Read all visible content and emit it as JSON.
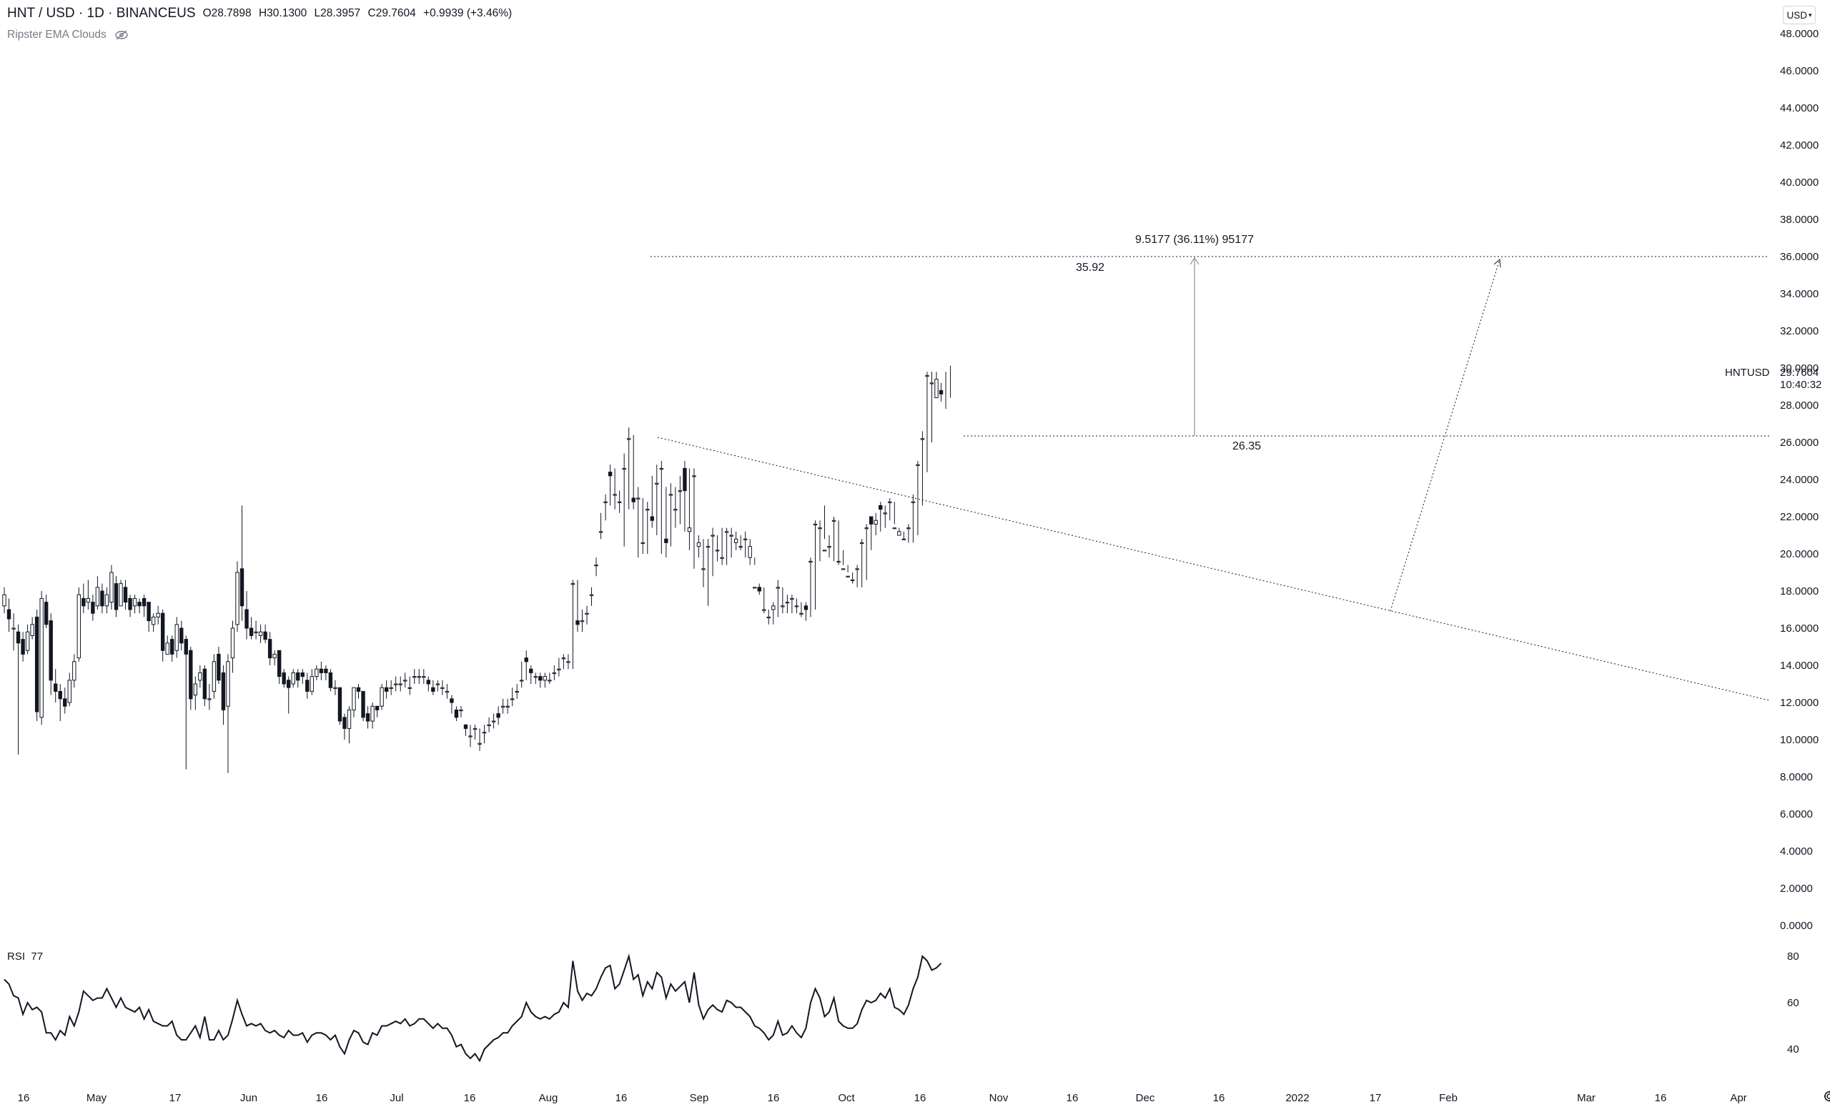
{
  "header": {
    "symbol": "HNT / USD · 1D · BINANCEUS",
    "open": "O28.7898",
    "high": "H30.1300",
    "low": "L28.3957",
    "close": "C29.7604",
    "change": "+0.9939 (+3.46%)"
  },
  "indicator": {
    "name": "Ripster EMA Clouds",
    "icon": "eye-off-icon"
  },
  "currency_button": "USD",
  "ticker_label": "HNTUSD",
  "last_price": "29.7604",
  "countdown": "10:40:32",
  "rsi": {
    "label": "RSI",
    "value": "77",
    "ticks": [
      "80",
      "60",
      "40"
    ]
  },
  "colors": {
    "up": "#ffffff",
    "down": "#131722",
    "stroke": "#131722",
    "line": "#131722",
    "price_tag_bg": "#ffffff"
  },
  "annotations": {
    "measure": "9.5177 (36.11%) 95177",
    "target_price": "35.92",
    "support_price": "26.35"
  },
  "chart_data": [
    {
      "type": "candlestick",
      "title": "HNT / USD · 1D · BINANCEUS",
      "y_ticks": [
        "48.0000",
        "46.0000",
        "44.0000",
        "42.0000",
        "40.0000",
        "38.0000",
        "36.0000",
        "34.0000",
        "32.0000",
        "30.0000",
        "28.0000",
        "26.0000",
        "24.0000",
        "22.0000",
        "20.0000",
        "18.0000",
        "16.0000",
        "14.0000",
        "12.0000",
        "10.0000",
        "8.0000",
        "6.0000",
        "4.0000",
        "2.0000",
        "0.0000"
      ],
      "ylim": [
        0,
        48
      ],
      "x_labels": [
        "16",
        "May",
        "17",
        "Jun",
        "16",
        "Jul",
        "16",
        "Aug",
        "16",
        "Sep",
        "16",
        "Oct",
        "16",
        "Nov",
        "16",
        "Dec",
        "16",
        "2022",
        "17",
        "Feb",
        "Mar",
        "16",
        "Apr"
      ],
      "series": [
        {
          "close": [
            17.8,
            16.5,
            16,
            15.2,
            14.6,
            15.8,
            16.2,
            11.5,
            17.6,
            16.2,
            13.2,
            12.6,
            12.2,
            11.8,
            13.2,
            14.2,
            17.8,
            17.2,
            17.6,
            16.8,
            18.2,
            17.2,
            17.8,
            19,
            17,
            18.4,
            17.4,
            17,
            17.6,
            17.2,
            17.2,
            16.4,
            16.6,
            16.8,
            14.8,
            15.2,
            14.6,
            16.2,
            15.2,
            14.6,
            12.2,
            13,
            13.6,
            12.2,
            12.2,
            14.2,
            13.2,
            11.6,
            14.2,
            16,
            19,
            17.2,
            16,
            15.6,
            15.8,
            15.8,
            15.4,
            14.4,
            14.6,
            13.4,
            13,
            12.8,
            13.6,
            13.2,
            13.4,
            12.6,
            13.4,
            13.8,
            13.6,
            13.6,
            12.8,
            12.8,
            11,
            10.6,
            11.6,
            12.8,
            12.6,
            11.2,
            11,
            11.8,
            11.6,
            12.8,
            12.6,
            12.8,
            13,
            13,
            13.2,
            12.8,
            13.4,
            13.4,
            13.4,
            13,
            12.6,
            13,
            12.8,
            12.6,
            12,
            11.2,
            11.6,
            10.6,
            10.2,
            10.6,
            9.8,
            10.4,
            10.8,
            11,
            11.2,
            11.8,
            11.8,
            12.2,
            12.6,
            13.2,
            14.2,
            13.6,
            13.4,
            13.2,
            13.4,
            13.2,
            13.6,
            13.8,
            14.4,
            14.2,
            18.4,
            16.2,
            16.4,
            16.8,
            17.8,
            19.4,
            21.2,
            22.8,
            24.2,
            23.2,
            22.8,
            24.6,
            26.2,
            22.8,
            23,
            20.6,
            22.4,
            21.8,
            23.8,
            24.6,
            20.6,
            23.2,
            22.4,
            23.4,
            23.4,
            21.4,
            24.2,
            20.6,
            19.2,
            20.4,
            21,
            20.2,
            19.8,
            21.2,
            21,
            20.8,
            20.4,
            20.8,
            20.4,
            18.2,
            18,
            17,
            16.6,
            17.2,
            18.2,
            17.2,
            17.4,
            17.6,
            17.2,
            16.8,
            17,
            19.6,
            21.6,
            21.4,
            20.2,
            20.4,
            21.8,
            19.6,
            19.2,
            18.8,
            18.6,
            19.2,
            20.6,
            21.4,
            21.6,
            21.8,
            22.4,
            22.2,
            22.8,
            21.4,
            21.2,
            20.8,
            21.4,
            22.8,
            24.8,
            26.2,
            29.6,
            29.2,
            29.4,
            28.6,
            28.8,
            29.7604
          ]
        },
        {
          "open": [
            17.2,
            17,
            16,
            15.8,
            15.4,
            14.8,
            15.6,
            16.6,
            11.2,
            17.4,
            16.4,
            13,
            12.6,
            12.2,
            12,
            13.2,
            14.4,
            17.6,
            17.4,
            17.4,
            17.2,
            18,
            17.2,
            17.4,
            18.4,
            17.2,
            18.2,
            17.6,
            17.2,
            17.4,
            17.6,
            17.4,
            16.2,
            16.6,
            16.8,
            14.6,
            15.4,
            14.8,
            16,
            15.4,
            14.8,
            12.4,
            13.2,
            13.8,
            12.2,
            12.6,
            14.6,
            13.6,
            11.8,
            14.4,
            16.2,
            19.2,
            17,
            16,
            15.8,
            15.6,
            15.8,
            15.4,
            14.4,
            14.8,
            13.6,
            13.2,
            13,
            13.6,
            13.6,
            13.2,
            12.6,
            13.4,
            13.8,
            13.8,
            13.6,
            12.8,
            12.8,
            11.2,
            10.6,
            11.6,
            12.8,
            12.6,
            11.4,
            11,
            11.8,
            11.8,
            12.8,
            12.8,
            13,
            13,
            13.2,
            12.8,
            13.4,
            13.4,
            13.4,
            13.2,
            12.8,
            13,
            12.8,
            12.6,
            12.2,
            11.6,
            11.6,
            10.8,
            10.2,
            10.6,
            9.8,
            10.4,
            10.8,
            11,
            11.4,
            11.8,
            11.8,
            12.2,
            12.6,
            13.2,
            14.4,
            13.8,
            13.4,
            13.4,
            13.2,
            13.2,
            13.6,
            13.8,
            14.4,
            14.2,
            18.4,
            16.4,
            16.4,
            16.8,
            17.8,
            19.4,
            21.2,
            22.8,
            24.4,
            23.2,
            22.8,
            24.6,
            26.2,
            23,
            23,
            20.6,
            22.4,
            22,
            23.8,
            24.6,
            20.8,
            23.2,
            22.4,
            23.4,
            24.6,
            21.2,
            24.2,
            20.4,
            19.2,
            20.4,
            21,
            20.2,
            19.8,
            21.2,
            21,
            20.6,
            20.4,
            20.8,
            19.8,
            18.2,
            18.2,
            17,
            16.6,
            17,
            18.2,
            17.2,
            17.4,
            17.6,
            17.2,
            16.8,
            17.2,
            19.6,
            21.6,
            21.4,
            20.2,
            20.4,
            21.8,
            19.6,
            19.2,
            18.8,
            18.6,
            19.2,
            20.6,
            21.4,
            22,
            21.6,
            22.6,
            22.2,
            22.8,
            21.4,
            21,
            20.8,
            21.4,
            22.8,
            24.8,
            26.2,
            29.6,
            29.2,
            28.4,
            28.7898
          ]
        },
        {
          "high": [
            18.2,
            17.6,
            16.8,
            16.2,
            15.8,
            16.2,
            16.6,
            17,
            18,
            17.8,
            16.8,
            13.8,
            13,
            12.8,
            13.6,
            14.6,
            18.2,
            18.4,
            18.6,
            17.8,
            18.8,
            18.4,
            18.2,
            19.4,
            18.8,
            18.6,
            18.6,
            17.8,
            17.8,
            17.6,
            17.8,
            17.4,
            16.8,
            17.2,
            17,
            15.6,
            15.6,
            16.6,
            16.4,
            15.6,
            15,
            13.4,
            14,
            14,
            13,
            14.6,
            15,
            14,
            14.6,
            16.4,
            19.6,
            22.6,
            18,
            16.6,
            16.4,
            16.2,
            16.2,
            15.8,
            14.8,
            14.8,
            13.8,
            13.4,
            13.8,
            13.8,
            13.8,
            13.6,
            13.8,
            14,
            14.2,
            14,
            13.8,
            13.2,
            12.8,
            11.4,
            11.8,
            12.8,
            13,
            12.6,
            11.8,
            12,
            11.8,
            13,
            13.2,
            13.2,
            13.4,
            13.4,
            13.6,
            13.4,
            13.8,
            13.8,
            13.8,
            13.4,
            13.2,
            13.2,
            13.2,
            13,
            12.4,
            11.8,
            11.8,
            10.8,
            10.8,
            10.8,
            10.6,
            10.8,
            11.2,
            11.4,
            11.8,
            12.2,
            12.2,
            12.8,
            13,
            14.2,
            14.8,
            14,
            13.6,
            13.6,
            13.6,
            13.6,
            14,
            14.4,
            14.6,
            14.6,
            18.6,
            18.6,
            17,
            17.2,
            18.2,
            19.8,
            22.2,
            23.2,
            24.8,
            24.6,
            23.4,
            25.4,
            26.8,
            26.4,
            23.6,
            23,
            22.8,
            24.2,
            24.8,
            25,
            23.6,
            23.8,
            23.6,
            24.2,
            25,
            24.6,
            24.6,
            21,
            20.8,
            20.8,
            21.4,
            21,
            21.4,
            21.4,
            21.4,
            21.2,
            21,
            21.2,
            20.8,
            19.8,
            18.4,
            18.2,
            17,
            17.4,
            18.6,
            18.2,
            17.8,
            17.8,
            17.6,
            17.4,
            17.4,
            19.8,
            21.8,
            21.8,
            22.6,
            21,
            22,
            21.8,
            20.2,
            19.4,
            19,
            19.4,
            20.8,
            21.6,
            22,
            22.2,
            22.8,
            22.6,
            23,
            22.8,
            21.4,
            21.2,
            21.6,
            23.2,
            25,
            26.6,
            29.8,
            29.8,
            29.8,
            29.2,
            29.8,
            30.13
          ]
        },
        {
          "low": [
            16.8,
            15.8,
            14.8,
            9.2,
            14.2,
            14.6,
            15.4,
            11,
            10.8,
            16,
            12.4,
            12,
            11,
            11.4,
            11.8,
            12.8,
            14.2,
            16.8,
            17,
            16.4,
            17,
            16.8,
            16.8,
            17,
            16.6,
            17.2,
            17,
            16.6,
            16.8,
            16.8,
            16.6,
            15.8,
            15.8,
            16.2,
            14.2,
            14.6,
            14.2,
            14.4,
            14.8,
            8.4,
            11.6,
            11.6,
            12.8,
            11.8,
            11.6,
            12.2,
            13,
            10.8,
            8.2,
            13.6,
            15.8,
            16.4,
            15.4,
            15.4,
            15.4,
            15.2,
            15.2,
            14,
            14,
            13,
            12.8,
            11.4,
            12.8,
            12.8,
            13,
            12.2,
            12.4,
            13.2,
            13.2,
            13.2,
            12.6,
            12.4,
            10.8,
            10,
            9.8,
            11.2,
            12.2,
            11,
            10.6,
            10.6,
            11.2,
            11.6,
            12.2,
            12.4,
            12.6,
            12.6,
            12.8,
            12.4,
            13,
            13,
            13,
            12.6,
            12.4,
            12.6,
            12.4,
            12.2,
            11.4,
            11,
            11.2,
            10.2,
            9.6,
            10,
            9.4,
            9.8,
            10.4,
            10.6,
            10.8,
            11.4,
            11.4,
            11.8,
            12.2,
            12.8,
            13.2,
            13,
            13,
            12.8,
            12.8,
            13,
            13.2,
            13.4,
            13.8,
            13.8,
            13.8,
            15.8,
            15.8,
            16.2,
            17.2,
            18.8,
            20.8,
            21.8,
            22.6,
            22.4,
            22.2,
            20.4,
            22.4,
            22.4,
            19.8,
            20,
            20,
            21.4,
            21,
            20,
            19.8,
            20.4,
            21.4,
            21.6,
            21.2,
            20.2,
            19.2,
            19.8,
            18.2,
            17.2,
            18.8,
            19.6,
            19.4,
            19.4,
            19.8,
            20.2,
            20.2,
            19.8,
            19.4,
            19.4,
            17.8,
            16.8,
            16.2,
            16.2,
            16.6,
            16.8,
            16.8,
            16.8,
            16.8,
            16.6,
            16.4,
            16.6,
            17,
            19.6,
            20.8,
            19.8,
            19.6,
            19.4,
            19.4,
            19,
            18.4,
            18.2,
            18.2,
            18.6,
            20.2,
            21,
            21.2,
            21.4,
            21.8,
            21.6,
            21.2,
            20.8,
            20.6,
            20.6,
            21,
            22.6,
            24.4,
            26,
            28.4,
            28.2,
            27.8,
            28.4,
            28.3957
          ]
        }
      ]
    },
    {
      "type": "line",
      "title": "RSI",
      "ylim": [
        30,
        85
      ],
      "y_ticks": [
        "80",
        "60",
        "40"
      ],
      "values": [
        70,
        68,
        63,
        62,
        55,
        60,
        57,
        58,
        56,
        47,
        47,
        44,
        48,
        46,
        54,
        50,
        56,
        65,
        63,
        61,
        62,
        62,
        66,
        62,
        58,
        62,
        58,
        57,
        56,
        58,
        53,
        57,
        52,
        51,
        50,
        50,
        52,
        46,
        44,
        44,
        47,
        50,
        45,
        54,
        44,
        44,
        48,
        44,
        46,
        53,
        61,
        55,
        50,
        51,
        50,
        51,
        48,
        47,
        48,
        46,
        45,
        48,
        46,
        46,
        47,
        43,
        46,
        47,
        47,
        46,
        44,
        46,
        41,
        38,
        44,
        48,
        47,
        43,
        42,
        47,
        46,
        50,
        50,
        51,
        52,
        51,
        53,
        50,
        51,
        53,
        53,
        51,
        49,
        51,
        49,
        49,
        46,
        41,
        42,
        38,
        36,
        38,
        35,
        40,
        42,
        44,
        45,
        47,
        47,
        50,
        52,
        54,
        60,
        56,
        54,
        53,
        54,
        53,
        55,
        56,
        60,
        58,
        78,
        65,
        61,
        64,
        63,
        66,
        71,
        75,
        76,
        66,
        68,
        74,
        80,
        70,
        72,
        63,
        69,
        66,
        73,
        71,
        62,
        68,
        65,
        67,
        69,
        60,
        73,
        59,
        53,
        57,
        59,
        57,
        56,
        61,
        60,
        58,
        58,
        56,
        54,
        50,
        49,
        47,
        44,
        46,
        52,
        46,
        47,
        50,
        47,
        45,
        49,
        60,
        66,
        62,
        54,
        56,
        62,
        52,
        50,
        49,
        49,
        51,
        57,
        61,
        60,
        61,
        64,
        62,
        66,
        58,
        57,
        55,
        59,
        66,
        71,
        80,
        78,
        74,
        75,
        77
      ]
    }
  ]
}
